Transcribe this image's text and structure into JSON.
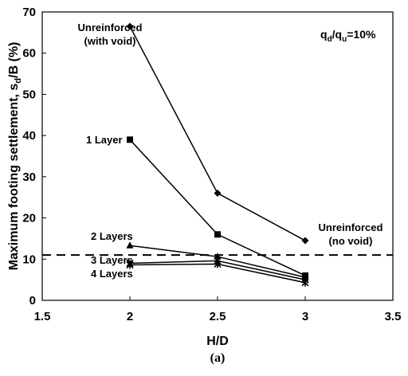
{
  "chart_data": {
    "type": "line",
    "title": "",
    "xlabel": "H/D",
    "ylabel": "Maximum footing settlement, s",
    "ylabel_sub": "d",
    "ylabel_tail": "/B (%)",
    "caption": "(a)",
    "xlim": [
      1.5,
      3.5
    ],
    "ylim": [
      0,
      70
    ],
    "xticks": [
      "1.5",
      "2",
      "2.5",
      "3",
      "3.5"
    ],
    "yticks": [
      "0",
      "10",
      "20",
      "30",
      "40",
      "50",
      "60",
      "70"
    ],
    "grid": false,
    "reference_line": {
      "y": 11,
      "style": "dashed"
    },
    "ratio_label": {
      "q1": "q",
      "s1": "d",
      "slash": "/q",
      "s2": "u",
      "tail": "=10%"
    },
    "series": [
      {
        "name": "Unreinforced (with void)",
        "marker": "diamond",
        "x": [
          2,
          2.5,
          3
        ],
        "y": [
          66.5,
          26,
          14.5
        ]
      },
      {
        "name": "1 Layer",
        "marker": "square",
        "x": [
          2,
          2.5,
          3
        ],
        "y": [
          39,
          16,
          6
        ]
      },
      {
        "name": "2 Layers",
        "marker": "triangle",
        "x": [
          2,
          2.5,
          3
        ],
        "y": [
          13.3,
          10.6,
          5.6
        ]
      },
      {
        "name": "3 Layers",
        "marker": "x",
        "x": [
          2,
          2.5,
          3
        ],
        "y": [
          9.0,
          9.6,
          5.0
        ]
      },
      {
        "name": "4 Layers",
        "marker": "star",
        "x": [
          2,
          2.5,
          3
        ],
        "y": [
          8.6,
          8.8,
          4.3
        ]
      }
    ],
    "annotations": {
      "unreinforced_void_line1": "Unreinforced",
      "unreinforced_void_line2": "(with void)",
      "layer1": "1 Layer",
      "layer2": "2 Layers",
      "layer3": "3 Layers",
      "layer4": "4 Layers",
      "no_void_line1": "Unreinforced",
      "no_void_line2": "(no void)"
    }
  }
}
